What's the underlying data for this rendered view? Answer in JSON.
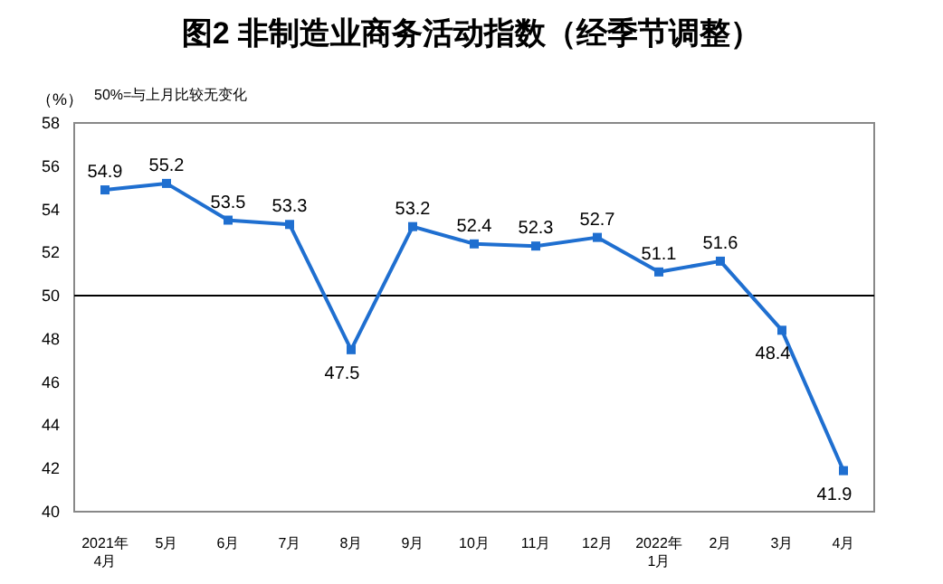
{
  "chart_data": {
    "type": "line",
    "title": "图2  非制造业商务活动指数（经季节调整）",
    "ylabel": "（%）",
    "annotations": [
      "50%=与上月比较无变化"
    ],
    "categories": [
      "2021年\n4月",
      "5月",
      "6月",
      "7月",
      "8月",
      "9月",
      "10月",
      "11月",
      "12月",
      "2022年\n1月",
      "2月",
      "3月",
      "4月"
    ],
    "series": [
      {
        "color": "#1f6fd0",
        "values": [
          54.9,
          55.2,
          53.5,
          53.3,
          47.5,
          53.2,
          52.4,
          52.3,
          52.7,
          51.1,
          51.6,
          48.4,
          41.9
        ]
      }
    ],
    "ylim": [
      40,
      58
    ],
    "yticks": [
      40,
      42,
      44,
      46,
      48,
      50,
      52,
      54,
      56,
      58
    ],
    "ref_lines": [
      {
        "axis": "y",
        "value": 50,
        "color": "#000000"
      }
    ],
    "marker": "square",
    "data_labels": true,
    "grid": false
  }
}
